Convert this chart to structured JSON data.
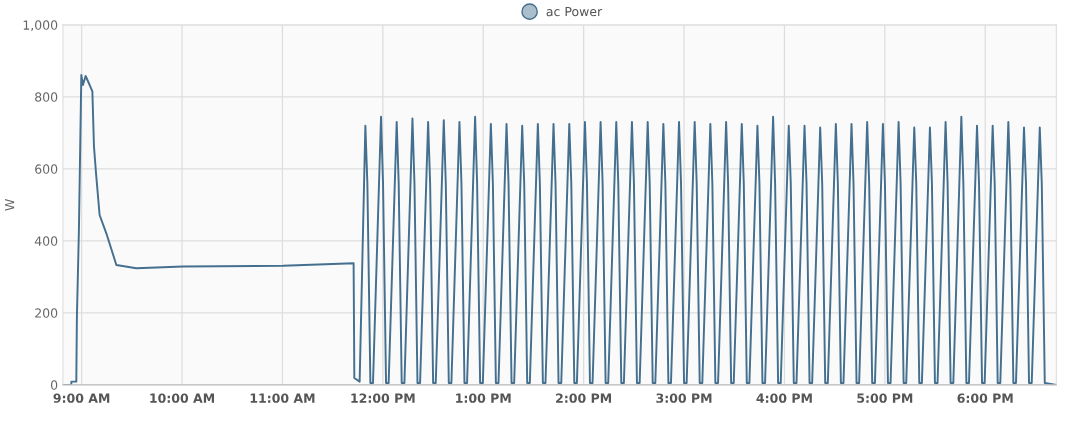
{
  "chart_data": {
    "type": "line",
    "ylabel": "W",
    "legend": "top",
    "grid": true,
    "line_style": "solid",
    "xlim": [
      8.814,
      18.708
    ],
    "xticks": [
      {
        "value": 9,
        "label": "9:00 AM"
      },
      {
        "value": 10,
        "label": "10:00 AM"
      },
      {
        "value": 11,
        "label": "11:00 AM"
      },
      {
        "value": 12,
        "label": "12:00 PM"
      },
      {
        "value": 13,
        "label": "1:00 PM"
      },
      {
        "value": 14,
        "label": "2:00 PM"
      },
      {
        "value": 15,
        "label": "3:00 PM"
      },
      {
        "value": 16,
        "label": "4:00 PM"
      },
      {
        "value": 17,
        "label": "5:00 PM"
      },
      {
        "value": 18,
        "label": "6:00 PM"
      }
    ],
    "ylim": [
      0,
      1000
    ],
    "yticks": [
      0,
      200,
      400,
      600,
      800,
      {
        "value": 1000,
        "label": "1,000"
      }
    ],
    "series": [
      {
        "name": "ac Power",
        "color": "#456f8f",
        "x": [
          8.814,
          8.897,
          8.898,
          8.947,
          8.953,
          8.973,
          8.997,
          9.013,
          9.04,
          9.08,
          9.107,
          9.123,
          9.146,
          9.179,
          9.246,
          9.346,
          9.545,
          10.009,
          11.005,
          11.709,
          11.716,
          11.769,
          11.826,
          11.846,
          11.876,
          11.902,
          11.982,
          12.002,
          12.032,
          12.058,
          12.138,
          12.158,
          12.188,
          12.215,
          12.295,
          12.315,
          12.345,
          12.371,
          12.451,
          12.471,
          12.501,
          12.527,
          12.607,
          12.627,
          12.657,
          12.683,
          12.763,
          12.783,
          12.813,
          12.839,
          12.919,
          12.939,
          12.969,
          12.996,
          13.076,
          13.096,
          13.126,
          13.152,
          13.232,
          13.252,
          13.282,
          13.308,
          13.388,
          13.408,
          13.438,
          13.464,
          13.544,
          13.564,
          13.594,
          13.62,
          13.7,
          13.72,
          13.75,
          13.777,
          13.857,
          13.877,
          13.907,
          13.933,
          14.013,
          14.033,
          14.063,
          14.089,
          14.169,
          14.189,
          14.219,
          14.245,
          14.325,
          14.345,
          14.375,
          14.401,
          14.481,
          14.501,
          14.531,
          14.558,
          14.638,
          14.658,
          14.688,
          14.714,
          14.794,
          14.814,
          14.844,
          14.87,
          14.95,
          14.97,
          15.0,
          15.026,
          15.106,
          15.126,
          15.156,
          15.182,
          15.262,
          15.282,
          15.312,
          15.339,
          15.419,
          15.439,
          15.469,
          15.495,
          15.575,
          15.595,
          15.625,
          15.651,
          15.731,
          15.751,
          15.781,
          15.807,
          15.887,
          15.907,
          15.937,
          15.963,
          16.043,
          16.063,
          16.093,
          16.12,
          16.2,
          16.22,
          16.25,
          16.276,
          16.356,
          16.376,
          16.406,
          16.432,
          16.512,
          16.532,
          16.562,
          16.588,
          16.668,
          16.688,
          16.718,
          16.744,
          16.824,
          16.844,
          16.874,
          16.901,
          16.981,
          17.001,
          17.031,
          17.057,
          17.137,
          17.157,
          17.187,
          17.213,
          17.293,
          17.313,
          17.343,
          17.369,
          17.449,
          17.469,
          17.499,
          17.525,
          17.605,
          17.625,
          17.655,
          17.682,
          17.762,
          17.782,
          17.812,
          17.838,
          17.918,
          17.938,
          17.968,
          17.994,
          18.074,
          18.094,
          18.124,
          18.15,
          18.23,
          18.25,
          18.28,
          18.306,
          18.386,
          18.406,
          18.436,
          18.463,
          18.543,
          18.563,
          18.593,
          18.708
        ],
        "values": [
          0,
          0,
          9,
          9,
          190,
          430,
          861,
          833,
          858,
          833,
          815,
          662,
          579,
          472,
          421,
          333,
          324,
          329,
          331,
          338,
          19,
          9,
          720,
          560,
          5,
          5,
          745,
          560,
          5,
          5,
          730,
          560,
          5,
          5,
          740,
          560,
          5,
          5,
          730,
          560,
          5,
          5,
          735,
          560,
          5,
          5,
          730,
          560,
          5,
          5,
          745,
          560,
          5,
          5,
          725,
          560,
          5,
          5,
          725,
          560,
          5,
          5,
          720,
          560,
          5,
          5,
          725,
          560,
          5,
          5,
          725,
          560,
          5,
          5,
          725,
          560,
          5,
          5,
          730,
          560,
          5,
          5,
          730,
          560,
          5,
          5,
          730,
          560,
          5,
          5,
          730,
          560,
          5,
          5,
          730,
          560,
          5,
          5,
          725,
          560,
          5,
          5,
          730,
          560,
          5,
          5,
          730,
          560,
          5,
          5,
          725,
          560,
          5,
          5,
          730,
          560,
          5,
          5,
          725,
          560,
          5,
          5,
          720,
          560,
          5,
          5,
          745,
          560,
          5,
          5,
          720,
          560,
          5,
          5,
          720,
          560,
          5,
          5,
          715,
          560,
          5,
          5,
          725,
          560,
          5,
          5,
          725,
          560,
          5,
          5,
          730,
          560,
          5,
          5,
          725,
          560,
          5,
          5,
          730,
          560,
          5,
          5,
          715,
          560,
          5,
          5,
          715,
          560,
          5,
          5,
          730,
          560,
          5,
          5,
          745,
          560,
          5,
          5,
          720,
          560,
          5,
          5,
          720,
          560,
          5,
          5,
          730,
          560,
          5,
          5,
          715,
          560,
          5,
          5,
          715,
          560,
          5,
          0
        ]
      }
    ]
  }
}
